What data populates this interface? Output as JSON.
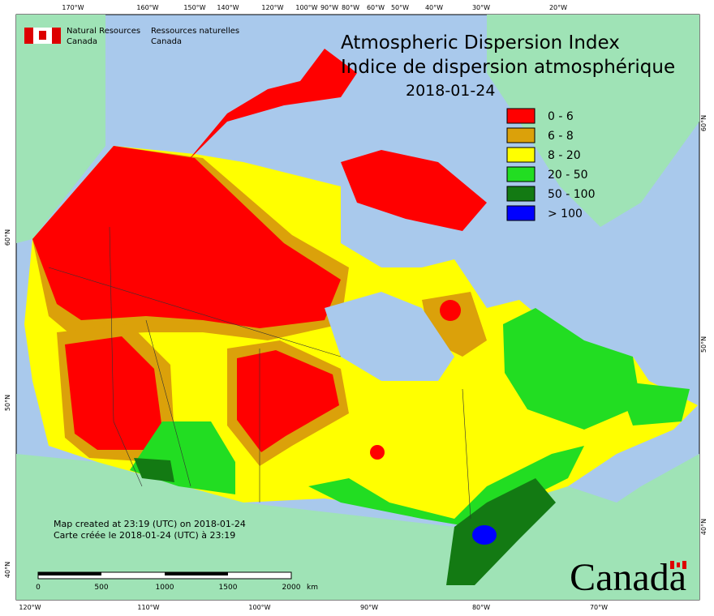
{
  "header": {
    "agency_en": [
      "Natural Resources",
      "Canada"
    ],
    "agency_fr": [
      "Ressources naturelles",
      "Canada"
    ]
  },
  "title": {
    "line1": "Atmospheric Dispersion Index",
    "line2": "Indice de dispersion atmosphérique",
    "date": "2018-01-24"
  },
  "legend": [
    {
      "label": "0 - 6",
      "color": "#ff0000"
    },
    {
      "label": "6 - 8",
      "color": "#dba10a"
    },
    {
      "label": "8 - 20",
      "color": "#ffff00"
    },
    {
      "label": "20 - 50",
      "color": "#22dd22"
    },
    {
      "label": "50 - 100",
      "color": "#137a13"
    },
    {
      "label": "> 100",
      "color": "#0000ff"
    }
  ],
  "notes": [
    "Map created at 23:19 (UTC) on 2018-01-24",
    "Carte créée le 2018-01-24 (UTC) à 23:19"
  ],
  "scale_bar": {
    "labels": [
      "0",
      "500",
      "1000",
      "1500",
      "2000"
    ],
    "unit": "km"
  },
  "top_axis_labels": [
    "170°W",
    "160°W",
    "150°W",
    "140°W",
    "120°W",
    "100°W",
    "90°W",
    "80°W",
    "60°W",
    "50°W",
    "40°W",
    "30°W",
    "20°W"
  ],
  "bottom_axis_labels": [
    "120°W",
    "110°W",
    "100°W",
    "90°W",
    "80°W",
    "70°W"
  ],
  "left_axis_labels": [
    "60°N",
    "50°N",
    "40°N"
  ],
  "right_axis_labels": [
    "60°N",
    "50°N",
    "40°N"
  ],
  "wordmark": "Canada"
}
